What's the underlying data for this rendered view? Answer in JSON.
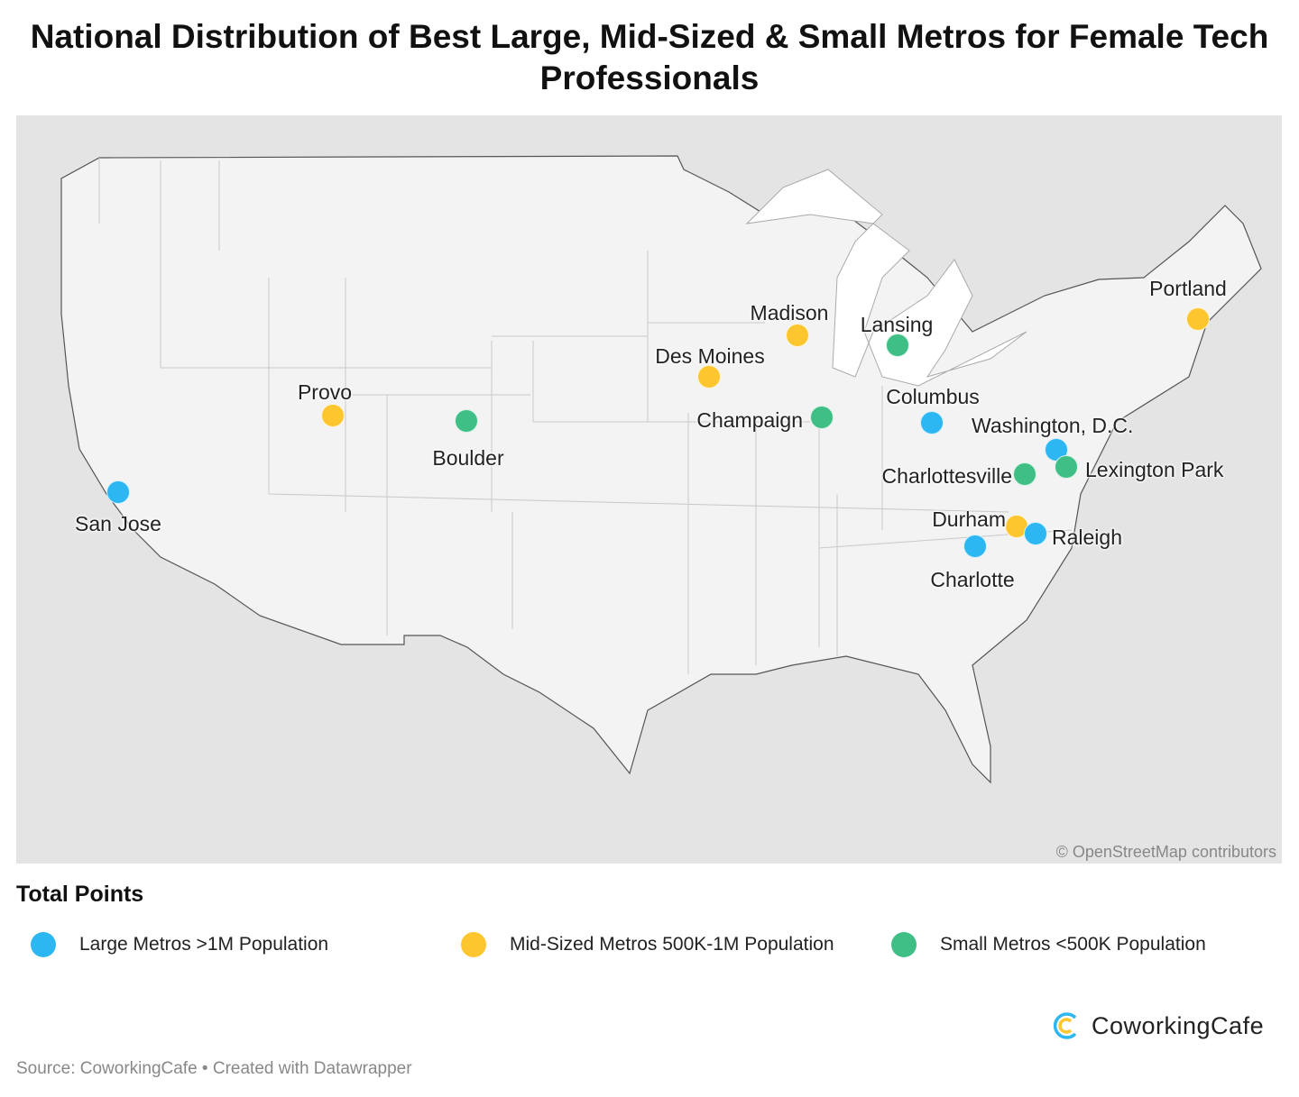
{
  "title": "National Distribution of Best Large, Mid-Sized & Small Metros for Female Tech Professionals",
  "attribution": "© OpenStreetMap contributors",
  "legend": {
    "title": "Total Points",
    "items": [
      {
        "label": "Large Metros >1M Population",
        "color": "#2cb6f2"
      },
      {
        "label": "Mid-Sized Metros 500K-1M Population",
        "color": "#fdc62e"
      },
      {
        "label": "Small Metros <500K Population",
        "color": "#3fbf86"
      }
    ]
  },
  "cities": [
    {
      "name": "San Jose",
      "category": 0
    },
    {
      "name": "Provo",
      "category": 1
    },
    {
      "name": "Boulder",
      "category": 2
    },
    {
      "name": "Madison",
      "category": 1
    },
    {
      "name": "Des Moines",
      "category": 1
    },
    {
      "name": "Lansing",
      "category": 2
    },
    {
      "name": "Champaign",
      "category": 2
    },
    {
      "name": "Columbus",
      "category": 0
    },
    {
      "name": "Washington, D.C.",
      "category": 0
    },
    {
      "name": "Lexington Park",
      "category": 2
    },
    {
      "name": "Charlottesville",
      "category": 2
    },
    {
      "name": "Durham",
      "category": 1
    },
    {
      "name": "Raleigh",
      "category": 0
    },
    {
      "name": "Charlotte",
      "category": 0
    },
    {
      "name": "Portland",
      "category": 1
    }
  ],
  "logo": {
    "text": "CoworkingCafe"
  },
  "source": "Source: CoworkingCafe • Created with Datawrapper"
}
